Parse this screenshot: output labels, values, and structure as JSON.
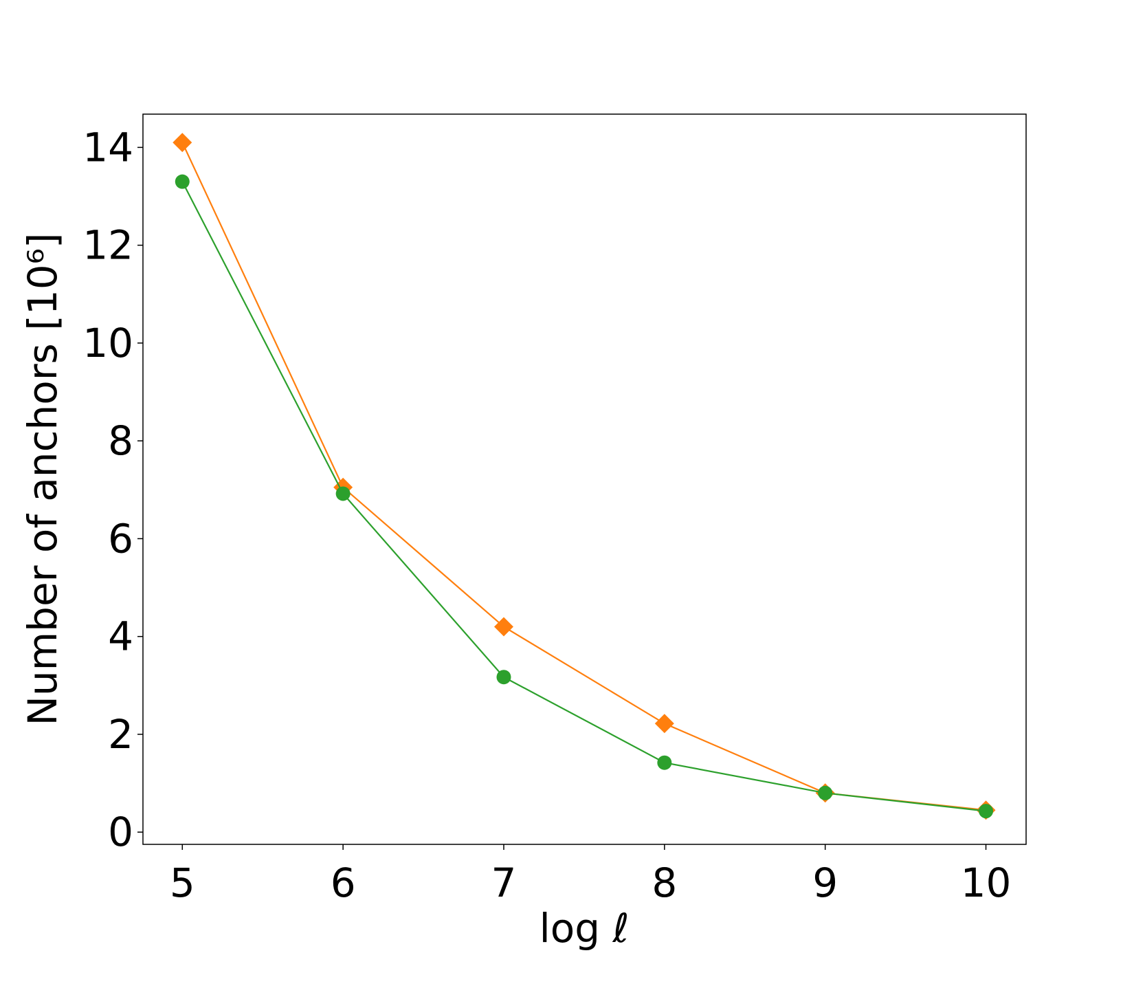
{
  "chart_data": {
    "type": "line",
    "x_label": "log ℓ",
    "y_label": "Number of anchors [10⁶]",
    "x": [
      5,
      6,
      7,
      8,
      9,
      10
    ],
    "series": [
      {
        "color": "#ff7f0e",
        "marker": "diamond",
        "values": [
          14.1,
          7.05,
          4.2,
          2.22,
          0.8,
          0.45
        ]
      },
      {
        "color": "#2ca02c",
        "marker": "circle",
        "values": [
          13.3,
          6.92,
          3.17,
          1.42,
          0.8,
          0.43
        ]
      }
    ],
    "xlim": [
      4.755,
      10.25
    ],
    "xticks": [
      5,
      6,
      7,
      8,
      9,
      10
    ],
    "ylim": [
      -0.25,
      14.68
    ],
    "yticks": [
      0,
      2,
      4,
      6,
      8,
      10,
      12,
      14
    ],
    "grid": false
  }
}
